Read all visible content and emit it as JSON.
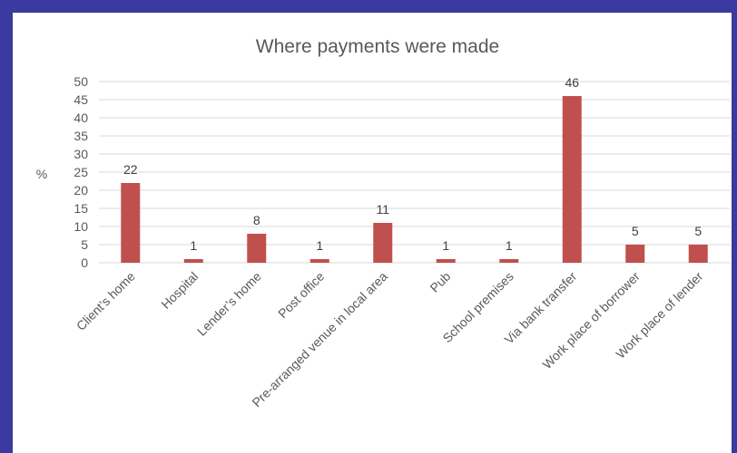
{
  "colors": {
    "frame": "#3a3aa0",
    "bar": "#c0504d",
    "grid": "#d9d9d9",
    "text": "#595959"
  },
  "chart_data": {
    "type": "bar",
    "title": "Where payments were made",
    "xlabel": "",
    "ylabel": "%",
    "ylim": [
      0,
      50
    ],
    "yticks": [
      0,
      5,
      10,
      15,
      20,
      25,
      30,
      35,
      40,
      45,
      50
    ],
    "grid": true,
    "categories": [
      "Client’s home",
      "Hospital",
      "Lender’s home",
      "Post office",
      "Pre-arranged venue in local area",
      "Pub",
      "School premises",
      "Via bank transfer",
      "Work place of borrower",
      "Work place of lender"
    ],
    "values": [
      22,
      1,
      8,
      1,
      11,
      1,
      1,
      46,
      5,
      5
    ]
  }
}
